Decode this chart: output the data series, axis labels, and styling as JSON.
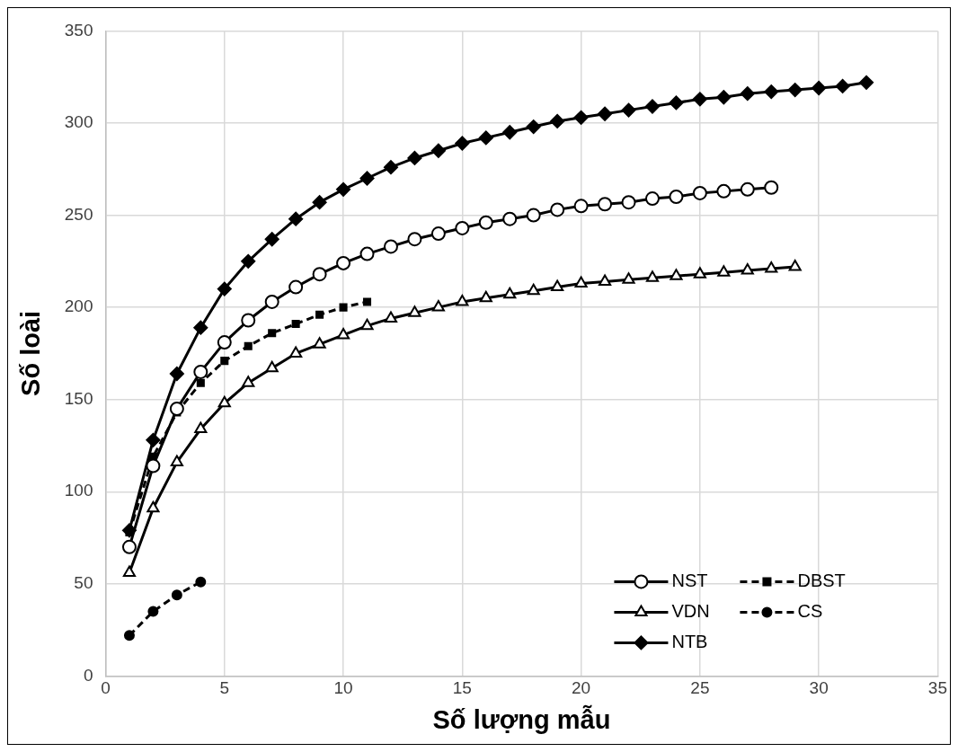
{
  "chart_data": {
    "type": "line",
    "xlabel": "Số lượng mẫu",
    "ylabel": "Số loài",
    "xlim": [
      0,
      35
    ],
    "xticks": [
      0,
      5,
      10,
      15,
      20,
      25,
      30,
      35
    ],
    "ylim": [
      0,
      350
    ],
    "yticks": [
      0,
      50,
      100,
      150,
      200,
      250,
      300,
      350
    ],
    "grid": true,
    "legend": "bottom right",
    "series": [
      {
        "name": "NST",
        "color": "#000000",
        "marker": "circle",
        "line_style": "solid",
        "x": [
          1,
          2,
          3,
          4,
          5,
          6,
          7,
          8,
          9,
          10,
          11,
          12,
          13,
          14,
          15,
          16,
          17,
          18,
          19,
          20,
          21,
          22,
          23,
          24,
          25,
          26,
          27,
          28
        ],
        "values": [
          70,
          114,
          145,
          165,
          181,
          193,
          203,
          211,
          218,
          224,
          229,
          233,
          237,
          240,
          243,
          246,
          248,
          250,
          253,
          255,
          256,
          257,
          259,
          260,
          262,
          263,
          264,
          265
        ]
      },
      {
        "name": "DBST",
        "color": "#000000",
        "marker": "square",
        "line_style": "dashed",
        "x": [
          1,
          2,
          3,
          4,
          5,
          6,
          7,
          8,
          9,
          10,
          11
        ],
        "values": [
          78,
          119,
          143,
          159,
          171,
          179,
          186,
          191,
          196,
          200,
          203
        ]
      },
      {
        "name": "VDN",
        "color": "#000000",
        "marker": "triangle",
        "line_style": "solid",
        "x": [
          1,
          2,
          3,
          4,
          5,
          6,
          7,
          8,
          9,
          10,
          11,
          12,
          13,
          14,
          15,
          16,
          17,
          18,
          19,
          20,
          21,
          22,
          23,
          24,
          25,
          26,
          27,
          28,
          29
        ],
        "values": [
          56,
          91,
          116,
          134,
          148,
          159,
          167,
          175,
          180,
          185,
          190,
          194,
          197,
          200,
          203,
          205,
          207,
          209,
          211,
          213,
          214,
          215,
          216,
          217,
          218,
          219,
          220,
          221,
          222
        ]
      },
      {
        "name": "CS",
        "color": "#000000",
        "marker": "circle",
        "line_style": "dashed",
        "x": [
          1,
          2,
          3,
          4
        ],
        "values": [
          22,
          35,
          44,
          51
        ]
      },
      {
        "name": "NTB",
        "color": "#000000",
        "marker": "diamond",
        "line_style": "solid",
        "x": [
          1,
          2,
          3,
          4,
          5,
          6,
          7,
          8,
          9,
          10,
          11,
          12,
          13,
          14,
          15,
          16,
          17,
          18,
          19,
          20,
          21,
          22,
          23,
          24,
          25,
          26,
          27,
          28,
          29,
          30,
          31,
          32
        ],
        "values": [
          79,
          128,
          164,
          189,
          210,
          225,
          237,
          248,
          257,
          264,
          270,
          276,
          281,
          285,
          289,
          292,
          295,
          298,
          301,
          303,
          305,
          307,
          309,
          311,
          313,
          314,
          316,
          317,
          318,
          319,
          320,
          322
        ]
      }
    ]
  }
}
